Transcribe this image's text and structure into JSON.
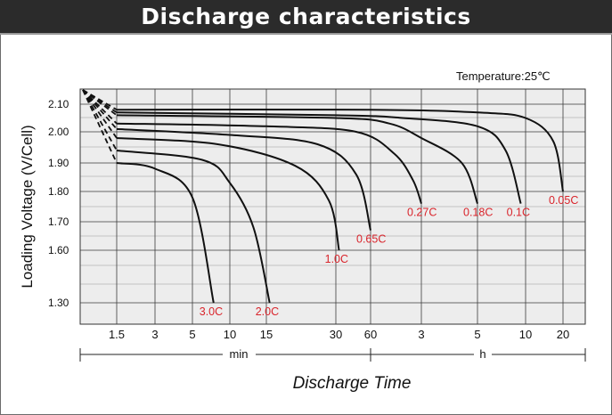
{
  "header": {
    "title": "Discharge characteristics"
  },
  "chart_data": {
    "type": "line",
    "title": "Discharge characteristics",
    "annotation": "Temperature:25℃",
    "ylabel": "Loading Voltage (V/Cell)",
    "xlabel": "Discharge Time",
    "x_unit_labels": [
      "min",
      "h"
    ],
    "ylim": [
      1.22,
      2.14
    ],
    "y_ticks": [
      2.1,
      2.0,
      1.9,
      1.8,
      1.7,
      1.6,
      1.3
    ],
    "y_tick_labels": [
      "2.10",
      "2.00",
      "1.90",
      "1.80",
      "1.70",
      "1.60",
      "1.30"
    ],
    "x_tick_labels": [
      "1.5",
      "3",
      "5",
      "10",
      "15",
      "30",
      "60",
      "3",
      "5",
      "10",
      "20"
    ],
    "x_tick_minutes": [
      1.5,
      3,
      5,
      10,
      15,
      30,
      60,
      180,
      300,
      600,
      1200
    ],
    "x_scale": "log",
    "grid": true,
    "initial_voltage": 2.16,
    "curve_color": "#111111",
    "label_color": "#d9242b",
    "series": [
      {
        "name": "0.05C",
        "points": [
          [
            1.5,
            2.08
          ],
          [
            60,
            2.08
          ],
          [
            300,
            2.07
          ],
          [
            600,
            2.05
          ],
          [
            1000,
            1.97
          ],
          [
            1200,
            1.8
          ]
        ]
      },
      {
        "name": "0.1C",
        "points": [
          [
            1.5,
            2.07
          ],
          [
            30,
            2.06
          ],
          [
            120,
            2.05
          ],
          [
            300,
            2.02
          ],
          [
            450,
            1.94
          ],
          [
            560,
            1.76
          ]
        ]
      },
      {
        "name": "0.18C",
        "points": [
          [
            1.5,
            2.06
          ],
          [
            30,
            2.05
          ],
          [
            90,
            2.03
          ],
          [
            180,
            1.98
          ],
          [
            260,
            1.9
          ],
          [
            300,
            1.76
          ]
        ]
      },
      {
        "name": "0.27C",
        "points": [
          [
            1.5,
            2.03
          ],
          [
            15,
            2.02
          ],
          [
            45,
            2.0
          ],
          [
            100,
            1.93
          ],
          [
            150,
            1.84
          ],
          [
            180,
            1.76
          ]
        ]
      },
      {
        "name": "0.65C",
        "points": [
          [
            1.5,
            2.01
          ],
          [
            10,
            1.99
          ],
          [
            25,
            1.96
          ],
          [
            45,
            1.86
          ],
          [
            60,
            1.67
          ]
        ]
      },
      {
        "name": "1.0C",
        "points": [
          [
            1.5,
            1.98
          ],
          [
            8,
            1.96
          ],
          [
            20,
            1.89
          ],
          [
            28,
            1.77
          ],
          [
            32,
            1.6
          ]
        ]
      },
      {
        "name": "2.0C",
        "points": [
          [
            1.5,
            1.94
          ],
          [
            6,
            1.91
          ],
          [
            10,
            1.83
          ],
          [
            13,
            1.68
          ],
          [
            15.5,
            1.3
          ]
        ]
      },
      {
        "name": "3.0C",
        "points": [
          [
            1.5,
            1.9
          ],
          [
            3,
            1.88
          ],
          [
            5,
            1.78
          ],
          [
            7.4,
            1.3
          ]
        ]
      }
    ]
  }
}
